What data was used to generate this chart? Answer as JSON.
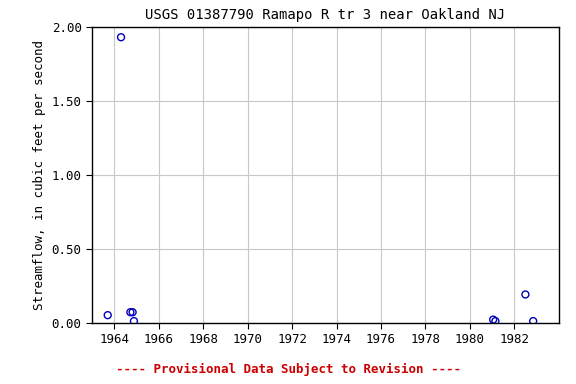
{
  "title": "USGS 01387790 Ramapo R tr 3 near Oakland NJ",
  "xlabel": "",
  "ylabel": "Streamflow, in cubic feet per second",
  "xlim": [
    1963,
    1984
  ],
  "ylim": [
    0.0,
    2.0
  ],
  "xticks": [
    1964,
    1966,
    1968,
    1970,
    1972,
    1974,
    1976,
    1978,
    1980,
    1982
  ],
  "yticks": [
    0.0,
    0.5,
    1.0,
    1.5,
    2.0
  ],
  "data_x": [
    1963.7,
    1964.3,
    1964.72,
    1964.82,
    1964.88,
    1981.05,
    1981.15,
    1982.5,
    1982.85
  ],
  "data_y": [
    0.05,
    1.93,
    0.07,
    0.07,
    0.01,
    0.02,
    0.01,
    0.19,
    0.01
  ],
  "marker_color": "#0000BB",
  "marker_size": 5,
  "marker_style": "o",
  "marker_facecolor": "none",
  "marker_linewidth": 1.0,
  "grid_color": "#C8C8C8",
  "background_color": "#FFFFFF",
  "title_fontsize": 10,
  "axis_label_fontsize": 9,
  "tick_fontsize": 9,
  "footnote": "---- Provisional Data Subject to Revision ----",
  "footnote_color": "#CC0000",
  "footnote_fontsize": 9
}
